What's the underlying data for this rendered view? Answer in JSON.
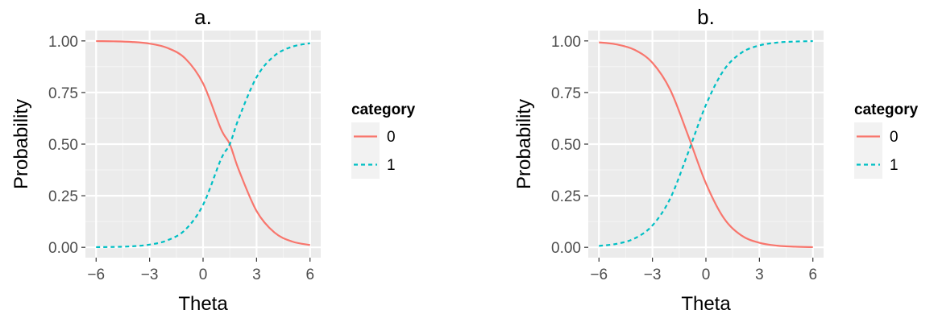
{
  "chart_data": [
    {
      "type": "line",
      "title": "a.",
      "xlabel": "Theta",
      "ylabel": "Probability",
      "xlim": [
        -6.6,
        6.6
      ],
      "ylim": [
        -0.05,
        1.05
      ],
      "xticks": [
        -6,
        -3,
        0,
        3,
        6
      ],
      "xtick_labels": [
        "−6",
        "−3",
        "0",
        "3",
        "6"
      ],
      "yticks": [
        0,
        0.25,
        0.5,
        0.75,
        1.0
      ],
      "ytick_labels": [
        "0.00",
        "0.25",
        "0.50",
        "0.75",
        "1.00"
      ],
      "grid": true,
      "legend": {
        "title": "category",
        "position": "right"
      },
      "series": [
        {
          "name": "0",
          "color": "#F8766D",
          "style": "solid",
          "x": [
            -6,
            -5,
            -4,
            -3,
            -2,
            -1,
            0,
            1,
            1.5,
            2,
            3,
            4,
            5,
            6
          ],
          "values": [
            0.999,
            0.998,
            0.995,
            0.987,
            0.966,
            0.915,
            0.794,
            0.574,
            0.5,
            0.376,
            0.176,
            0.072,
            0.028,
            0.011
          ]
        },
        {
          "name": "1",
          "color": "#00BFC4",
          "style": "dashed",
          "x": [
            -6,
            -5,
            -4,
            -3,
            -2,
            -1,
            0,
            1,
            1.5,
            2,
            3,
            4,
            5,
            6
          ],
          "values": [
            0.001,
            0.002,
            0.005,
            0.013,
            0.034,
            0.085,
            0.206,
            0.426,
            0.5,
            0.624,
            0.824,
            0.928,
            0.972,
            0.989
          ]
        }
      ]
    },
    {
      "type": "line",
      "title": "b.",
      "xlabel": "Theta",
      "ylabel": "Probability",
      "xlim": [
        -6.6,
        6.6
      ],
      "ylim": [
        -0.05,
        1.05
      ],
      "xticks": [
        -6,
        -3,
        0,
        3,
        6
      ],
      "xtick_labels": [
        "−6",
        "−3",
        "0",
        "3",
        "6"
      ],
      "yticks": [
        0,
        0.25,
        0.5,
        0.75,
        1.0
      ],
      "ytick_labels": [
        "0.00",
        "0.25",
        "0.50",
        "0.75",
        "1.00"
      ],
      "grid": true,
      "legend": {
        "title": "category",
        "position": "right"
      },
      "series": [
        {
          "name": "0",
          "color": "#F8766D",
          "style": "solid",
          "x": [
            -6,
            -5,
            -4,
            -3,
            -2,
            -1,
            0,
            1,
            2,
            3,
            4,
            5,
            6
          ],
          "values": [
            0.993,
            0.983,
            0.957,
            0.894,
            0.763,
            0.542,
            0.31,
            0.142,
            0.057,
            0.022,
            0.008,
            0.003,
            0.001
          ]
        },
        {
          "name": "1",
          "color": "#00BFC4",
          "style": "dashed",
          "x": [
            -6,
            -5,
            -4,
            -3,
            -2,
            -1,
            0,
            1,
            2,
            3,
            4,
            5,
            6
          ],
          "values": [
            0.007,
            0.017,
            0.043,
            0.106,
            0.237,
            0.458,
            0.69,
            0.858,
            0.943,
            0.978,
            0.992,
            0.997,
            0.999
          ]
        }
      ]
    }
  ]
}
